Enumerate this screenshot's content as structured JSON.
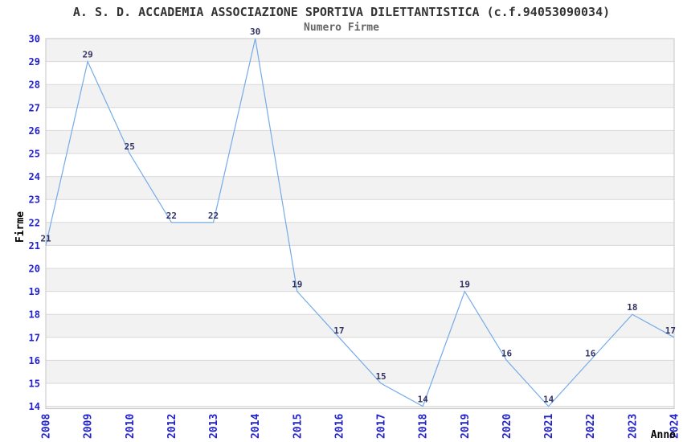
{
  "chart_data": {
    "type": "line",
    "title": "A. S. D. ACCADEMIA ASSOCIAZIONE SPORTIVA DILETTANTISTICA (c.f.94053090034)",
    "subtitle": "Numero Firme",
    "xlabel": "Anno",
    "ylabel": "Firme",
    "categories": [
      "2008",
      "2009",
      "2010",
      "2012",
      "2013",
      "2014",
      "2015",
      "2016",
      "2017",
      "2018",
      "2019",
      "2020",
      "2021",
      "2022",
      "2023",
      "2024"
    ],
    "values": [
      21,
      29,
      25,
      22,
      22,
      30,
      19,
      17,
      15,
      14,
      19,
      16,
      14,
      16,
      18,
      17
    ],
    "ylim": [
      14,
      30
    ],
    "ytick_step": 1,
    "grid": "horizontal-bands",
    "legend": "none",
    "show_point_labels": true,
    "colors": {
      "line": "#74abe8",
      "tick_label": "#2222cc",
      "point_label": "#333366",
      "band": "#f2f2f2",
      "band_alt": "#ffffff",
      "gridline": "#d8d8d8",
      "border": "#c6c6c6",
      "title": "#333333",
      "subtitle": "#666666",
      "axis_title": "#000000"
    }
  }
}
